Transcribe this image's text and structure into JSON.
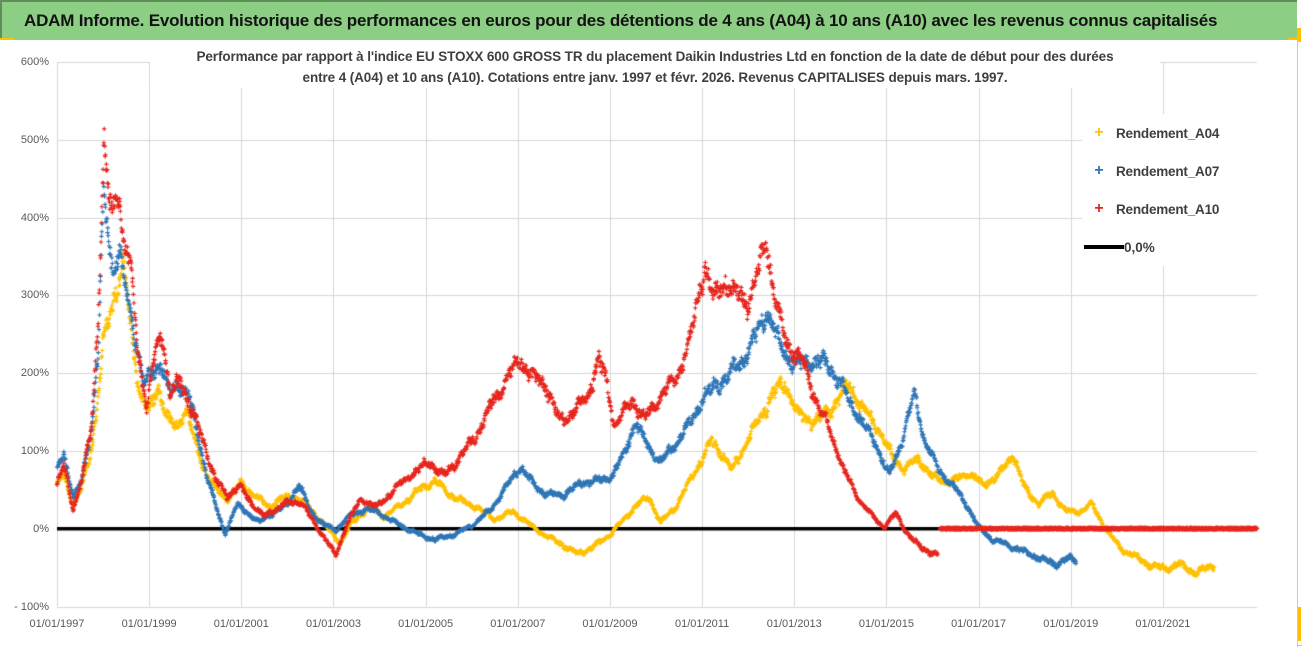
{
  "header": {
    "title": "ADAM Informe. Evolution historique des performances en euros pour des détentions de 4 ans (A04) à 10 ans (A10) avec les revenus connus capitalisés"
  },
  "chart": {
    "title_line1": "Performance par rapport à l'indice EU STOXX 600 GROSS TR  du placement Daikin Industries Ltd en fonction de la date de début pour des durées",
    "title_line2": "entre 4 (A04) et 10 ans (A10). Cotations entre janv. 1997 et févr. 2026. Revenus CAPITALISES depuis mars. 1997."
  },
  "chart_data": {
    "type": "scatter",
    "title": "Performance par rapport à l'indice EU STOXX 600 GROSS TR du placement Daikin Industries Ltd en fonction de la date de début pour des durées entre 4 (A04) et 10 ans (A10). Cotations entre janv. 1997 et févr. 2026. Revenus CAPITALISES depuis mars. 1997.",
    "grid": true,
    "legend_position": "right",
    "marker": "plus",
    "y_axis": {
      "min": -100,
      "max": 600,
      "step": 100,
      "tick_values": [
        600,
        500,
        400,
        300,
        200,
        100,
        0,
        -100
      ],
      "tick_labels": [
        "600%",
        "500%",
        "400%",
        "300%",
        "200%",
        "100%",
        "0%",
        "- 100%"
      ]
    },
    "x_axis": {
      "start_year": 1997,
      "end_year": 2023,
      "tick_interval_years": 2,
      "tick_values": [
        1997,
        1999,
        2001,
        2003,
        2005,
        2007,
        2009,
        2011,
        2013,
        2015,
        2017,
        2019,
        2021
      ],
      "tick_labels": [
        "01/01/1997",
        "01/01/1999",
        "01/01/2001",
        "01/01/2003",
        "01/01/2005",
        "01/01/2007",
        "01/01/2009",
        "01/01/2011",
        "01/01/2013",
        "01/01/2015",
        "01/01/2017",
        "01/01/2019",
        "01/01/2021"
      ]
    },
    "zero_line": {
      "label": "0,0%",
      "color": "#000000"
    },
    "series": [
      {
        "name": "Rendement_A04",
        "color": "#FFC000",
        "points": [
          [
            1997.0,
            55
          ],
          [
            1997.15,
            72
          ],
          [
            1997.35,
            30
          ],
          [
            1997.5,
            46
          ],
          [
            1997.7,
            90
          ],
          [
            1997.85,
            145
          ],
          [
            1998.0,
            235
          ],
          [
            1998.2,
            292
          ],
          [
            1998.45,
            340
          ],
          [
            1998.6,
            258
          ],
          [
            1998.8,
            175
          ],
          [
            1999.0,
            150
          ],
          [
            1999.2,
            185
          ],
          [
            1999.4,
            140
          ],
          [
            1999.6,
            130
          ],
          [
            1999.8,
            155
          ],
          [
            2000.0,
            110
          ],
          [
            2000.2,
            75
          ],
          [
            2000.45,
            50
          ],
          [
            2000.7,
            38
          ],
          [
            2001.0,
            58
          ],
          [
            2001.3,
            42
          ],
          [
            2001.6,
            28
          ],
          [
            2001.85,
            38
          ],
          [
            2002.1,
            42
          ],
          [
            2002.4,
            32
          ],
          [
            2002.7,
            12
          ],
          [
            2003.0,
            -8
          ],
          [
            2003.15,
            -18
          ],
          [
            2003.4,
            8
          ],
          [
            2003.8,
            28
          ],
          [
            2004.1,
            15
          ],
          [
            2004.5,
            32
          ],
          [
            2004.9,
            52
          ],
          [
            2005.2,
            62
          ],
          [
            2005.5,
            45
          ],
          [
            2005.8,
            35
          ],
          [
            2006.1,
            28
          ],
          [
            2006.5,
            12
          ],
          [
            2006.9,
            22
          ],
          [
            2007.2,
            8
          ],
          [
            2007.5,
            -5
          ],
          [
            2007.9,
            -18
          ],
          [
            2008.3,
            -32
          ],
          [
            2008.6,
            -25
          ],
          [
            2009.0,
            -8
          ],
          [
            2009.35,
            15
          ],
          [
            2009.6,
            32
          ],
          [
            2009.85,
            40
          ],
          [
            2010.1,
            8
          ],
          [
            2010.45,
            30
          ],
          [
            2010.9,
            80
          ],
          [
            2011.2,
            112
          ],
          [
            2011.45,
            95
          ],
          [
            2011.65,
            75
          ],
          [
            2011.9,
            105
          ],
          [
            2012.15,
            130
          ],
          [
            2012.5,
            170
          ],
          [
            2012.8,
            188
          ],
          [
            2013.1,
            145
          ],
          [
            2013.5,
            138
          ],
          [
            2013.9,
            162
          ],
          [
            2014.2,
            186
          ],
          [
            2014.5,
            152
          ],
          [
            2014.8,
            132
          ],
          [
            2015.1,
            95
          ],
          [
            2015.4,
            76
          ],
          [
            2015.7,
            90
          ],
          [
            2016.0,
            66
          ],
          [
            2016.4,
            60
          ],
          [
            2016.8,
            72
          ],
          [
            2017.1,
            56
          ],
          [
            2017.45,
            70
          ],
          [
            2017.75,
            95
          ],
          [
            2018.0,
            52
          ],
          [
            2018.3,
            32
          ],
          [
            2018.6,
            46
          ],
          [
            2018.9,
            22
          ],
          [
            2019.2,
            22
          ],
          [
            2019.45,
            32
          ],
          [
            2019.8,
            -4
          ],
          [
            2020.1,
            -26
          ],
          [
            2020.4,
            -36
          ],
          [
            2020.7,
            -46
          ],
          [
            2021.0,
            -52
          ],
          [
            2021.35,
            -46
          ],
          [
            2021.7,
            -56
          ],
          [
            2022.0,
            -50
          ],
          [
            2022.12,
            -46
          ]
        ]
      },
      {
        "name": "Rendement_A07",
        "color": "#2E75B6",
        "points": [
          [
            1997.0,
            75
          ],
          [
            1997.15,
            95
          ],
          [
            1997.35,
            42
          ],
          [
            1997.55,
            62
          ],
          [
            1997.75,
            130
          ],
          [
            1997.9,
            235
          ],
          [
            1998.0,
            420
          ],
          [
            1998.1,
            388
          ],
          [
            1998.2,
            330
          ],
          [
            1998.35,
            365
          ],
          [
            1998.5,
            300
          ],
          [
            1998.7,
            245
          ],
          [
            1998.9,
            185
          ],
          [
            1999.1,
            200
          ],
          [
            1999.25,
            215
          ],
          [
            1999.45,
            172
          ],
          [
            1999.65,
            185
          ],
          [
            1999.85,
            175
          ],
          [
            2000.05,
            120
          ],
          [
            2000.25,
            70
          ],
          [
            2000.5,
            18
          ],
          [
            2000.65,
            -6
          ],
          [
            2000.9,
            30
          ],
          [
            2001.1,
            22
          ],
          [
            2001.4,
            8
          ],
          [
            2001.7,
            22
          ],
          [
            2002.0,
            30
          ],
          [
            2002.25,
            58
          ],
          [
            2002.5,
            22
          ],
          [
            2002.8,
            5
          ],
          [
            2003.05,
            -2
          ],
          [
            2003.3,
            14
          ],
          [
            2003.7,
            26
          ],
          [
            2004.0,
            20
          ],
          [
            2004.4,
            6
          ],
          [
            2004.8,
            -6
          ],
          [
            2005.2,
            -14
          ],
          [
            2005.6,
            -8
          ],
          [
            2006.0,
            4
          ],
          [
            2006.4,
            24
          ],
          [
            2006.8,
            58
          ],
          [
            2007.05,
            80
          ],
          [
            2007.3,
            60
          ],
          [
            2007.6,
            44
          ],
          [
            2008.0,
            44
          ],
          [
            2008.4,
            60
          ],
          [
            2008.8,
            62
          ],
          [
            2009.05,
            68
          ],
          [
            2009.3,
            95
          ],
          [
            2009.55,
            138
          ],
          [
            2009.8,
            108
          ],
          [
            2010.1,
            85
          ],
          [
            2010.4,
            108
          ],
          [
            2010.7,
            132
          ],
          [
            2011.0,
            165
          ],
          [
            2011.3,
            185
          ],
          [
            2011.6,
            198
          ],
          [
            2011.9,
            220
          ],
          [
            2012.15,
            245
          ],
          [
            2012.4,
            280
          ],
          [
            2012.7,
            235
          ],
          [
            2013.0,
            210
          ],
          [
            2013.35,
            215
          ],
          [
            2013.75,
            212
          ],
          [
            2014.1,
            175
          ],
          [
            2014.45,
            138
          ],
          [
            2014.75,
            112
          ],
          [
            2015.05,
            68
          ],
          [
            2015.35,
            115
          ],
          [
            2015.6,
            172
          ],
          [
            2015.8,
            120
          ],
          [
            2016.1,
            78
          ],
          [
            2016.45,
            55
          ],
          [
            2016.75,
            30
          ],
          [
            2017.0,
            2
          ],
          [
            2017.3,
            -14
          ],
          [
            2017.6,
            -20
          ],
          [
            2018.0,
            -30
          ],
          [
            2018.35,
            -38
          ],
          [
            2018.65,
            -46
          ],
          [
            2018.95,
            -38
          ],
          [
            2019.12,
            -42
          ]
        ]
      },
      {
        "name": "Rendement_A10",
        "color": "#E6251C",
        "points": [
          [
            1997.0,
            58
          ],
          [
            1997.15,
            80
          ],
          [
            1997.35,
            25
          ],
          [
            1997.55,
            66
          ],
          [
            1997.75,
            130
          ],
          [
            1997.9,
            285
          ],
          [
            1998.02,
            495
          ],
          [
            1998.1,
            432
          ],
          [
            1998.2,
            400
          ],
          [
            1998.32,
            452
          ],
          [
            1998.45,
            370
          ],
          [
            1998.6,
            330
          ],
          [
            1998.75,
            235
          ],
          [
            1998.95,
            152
          ],
          [
            1999.15,
            235
          ],
          [
            1999.3,
            248
          ],
          [
            1999.45,
            172
          ],
          [
            1999.7,
            190
          ],
          [
            1999.95,
            148
          ],
          [
            2000.2,
            108
          ],
          [
            2000.45,
            62
          ],
          [
            2000.7,
            42
          ],
          [
            2000.95,
            55
          ],
          [
            2001.2,
            35
          ],
          [
            2001.5,
            15
          ],
          [
            2001.9,
            32
          ],
          [
            2002.3,
            35
          ],
          [
            2002.6,
            5
          ],
          [
            2002.85,
            -15
          ],
          [
            2003.05,
            -35
          ],
          [
            2003.3,
            8
          ],
          [
            2003.6,
            38
          ],
          [
            2003.95,
            28
          ],
          [
            2004.4,
            55
          ],
          [
            2004.8,
            75
          ],
          [
            2005.1,
            85
          ],
          [
            2005.4,
            68
          ],
          [
            2005.75,
            92
          ],
          [
            2006.1,
            120
          ],
          [
            2006.5,
            168
          ],
          [
            2006.8,
            196
          ],
          [
            2007.05,
            218
          ],
          [
            2007.3,
            196
          ],
          [
            2007.6,
            186
          ],
          [
            2007.9,
            138
          ],
          [
            2008.2,
            150
          ],
          [
            2008.5,
            168
          ],
          [
            2008.75,
            215
          ],
          [
            2008.9,
            195
          ],
          [
            2009.1,
            132
          ],
          [
            2009.3,
            150
          ],
          [
            2009.5,
            165
          ],
          [
            2009.75,
            140
          ],
          [
            2010.1,
            170
          ],
          [
            2010.45,
            195
          ],
          [
            2010.75,
            245
          ],
          [
            2010.9,
            290
          ],
          [
            2011.05,
            342
          ],
          [
            2011.25,
            292
          ],
          [
            2011.5,
            318
          ],
          [
            2011.75,
            298
          ],
          [
            2012.0,
            292
          ],
          [
            2012.2,
            328
          ],
          [
            2012.4,
            368
          ],
          [
            2012.6,
            292
          ],
          [
            2012.8,
            242
          ],
          [
            2013.0,
            228
          ],
          [
            2013.2,
            212
          ],
          [
            2013.5,
            162
          ],
          [
            2013.8,
            122
          ],
          [
            2014.1,
            72
          ],
          [
            2014.4,
            38
          ],
          [
            2014.7,
            16
          ],
          [
            2014.95,
            2
          ],
          [
            2015.2,
            20
          ],
          [
            2015.45,
            -6
          ],
          [
            2015.7,
            -22
          ],
          [
            2015.95,
            -30
          ],
          [
            2016.12,
            -35
          ]
        ],
        "zero_tail": {
          "from": 2016.17,
          "to": 2023.1,
          "value": 0
        }
      }
    ]
  }
}
